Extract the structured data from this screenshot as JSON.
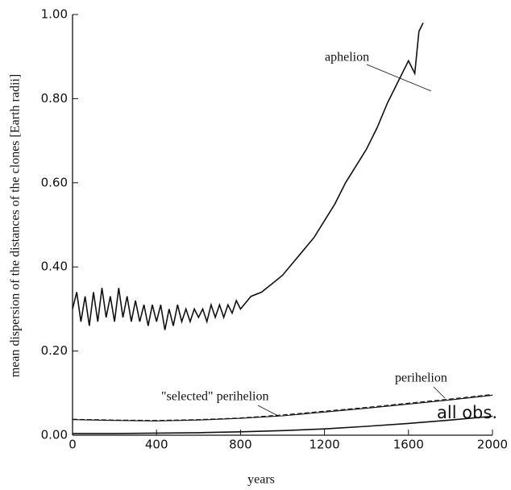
{
  "chart_data": {
    "type": "line",
    "xlabel": "years",
    "ylabel": "mean dispersion of the distances of the clones [Earth radii]",
    "xlim": [
      0,
      2000
    ],
    "xticks": [
      0,
      400,
      800,
      1200,
      1600,
      2000
    ],
    "ylim": [
      0,
      1
    ],
    "yticks": [
      {
        "value": 0,
        "label": "0.00"
      },
      {
        "value": 0.2,
        "label": "0.20"
      },
      {
        "value": 0.4,
        "label": "0.40"
      },
      {
        "value": 0.6,
        "label": "0.60"
      },
      {
        "value": 0.8,
        "label": "0.80"
      },
      {
        "value": 1,
        "label": "1.00"
      }
    ],
    "series": [
      {
        "name": "aphelion",
        "color": "#111111",
        "dashed": false,
        "x": [
          0,
          20,
          40,
          60,
          80,
          100,
          120,
          140,
          160,
          180,
          200,
          220,
          240,
          260,
          280,
          300,
          320,
          340,
          360,
          380,
          400,
          420,
          440,
          460,
          480,
          500,
          520,
          540,
          560,
          580,
          600,
          620,
          640,
          660,
          680,
          700,
          720,
          740,
          760,
          780,
          800,
          850,
          900,
          950,
          1000,
          1050,
          1100,
          1150,
          1200,
          1250,
          1300,
          1350,
          1400,
          1450,
          1500,
          1550,
          1600,
          1630,
          1650,
          1670
        ],
        "values": [
          0.3,
          0.34,
          0.27,
          0.33,
          0.26,
          0.34,
          0.27,
          0.35,
          0.28,
          0.33,
          0.27,
          0.35,
          0.28,
          0.33,
          0.27,
          0.32,
          0.27,
          0.31,
          0.26,
          0.31,
          0.27,
          0.31,
          0.25,
          0.3,
          0.26,
          0.31,
          0.27,
          0.3,
          0.27,
          0.3,
          0.28,
          0.3,
          0.27,
          0.31,
          0.28,
          0.31,
          0.28,
          0.31,
          0.29,
          0.32,
          0.3,
          0.33,
          0.34,
          0.36,
          0.38,
          0.41,
          0.44,
          0.47,
          0.51,
          0.55,
          0.6,
          0.64,
          0.68,
          0.73,
          0.79,
          0.84,
          0.89,
          0.86,
          0.96,
          0.98
        ]
      },
      {
        "name": "perihelion",
        "color": "#111111",
        "dashed": true,
        "x": [
          0,
          200,
          400,
          600,
          800,
          1000,
          1200,
          1400,
          1600,
          1800,
          2000
        ],
        "values": [
          0.038,
          0.036,
          0.035,
          0.037,
          0.041,
          0.048,
          0.057,
          0.066,
          0.076,
          0.086,
          0.097
        ]
      },
      {
        "name": "\"selected\" perihelion",
        "color": "#111111",
        "dashed": false,
        "x": [
          0,
          200,
          400,
          600,
          800,
          1000,
          1200,
          1400,
          1600,
          1800,
          2000
        ],
        "values": [
          0.037,
          0.035,
          0.034,
          0.036,
          0.04,
          0.046,
          0.055,
          0.064,
          0.074,
          0.084,
          0.095
        ]
      },
      {
        "name": "all obs.",
        "color": "#111111",
        "dashed": false,
        "x": [
          0,
          200,
          400,
          600,
          800,
          1000,
          1200,
          1400,
          1600,
          1800,
          2000
        ],
        "values": [
          0.004,
          0.004,
          0.005,
          0.006,
          0.008,
          0.011,
          0.015,
          0.021,
          0.028,
          0.036,
          0.045
        ]
      }
    ]
  }
}
